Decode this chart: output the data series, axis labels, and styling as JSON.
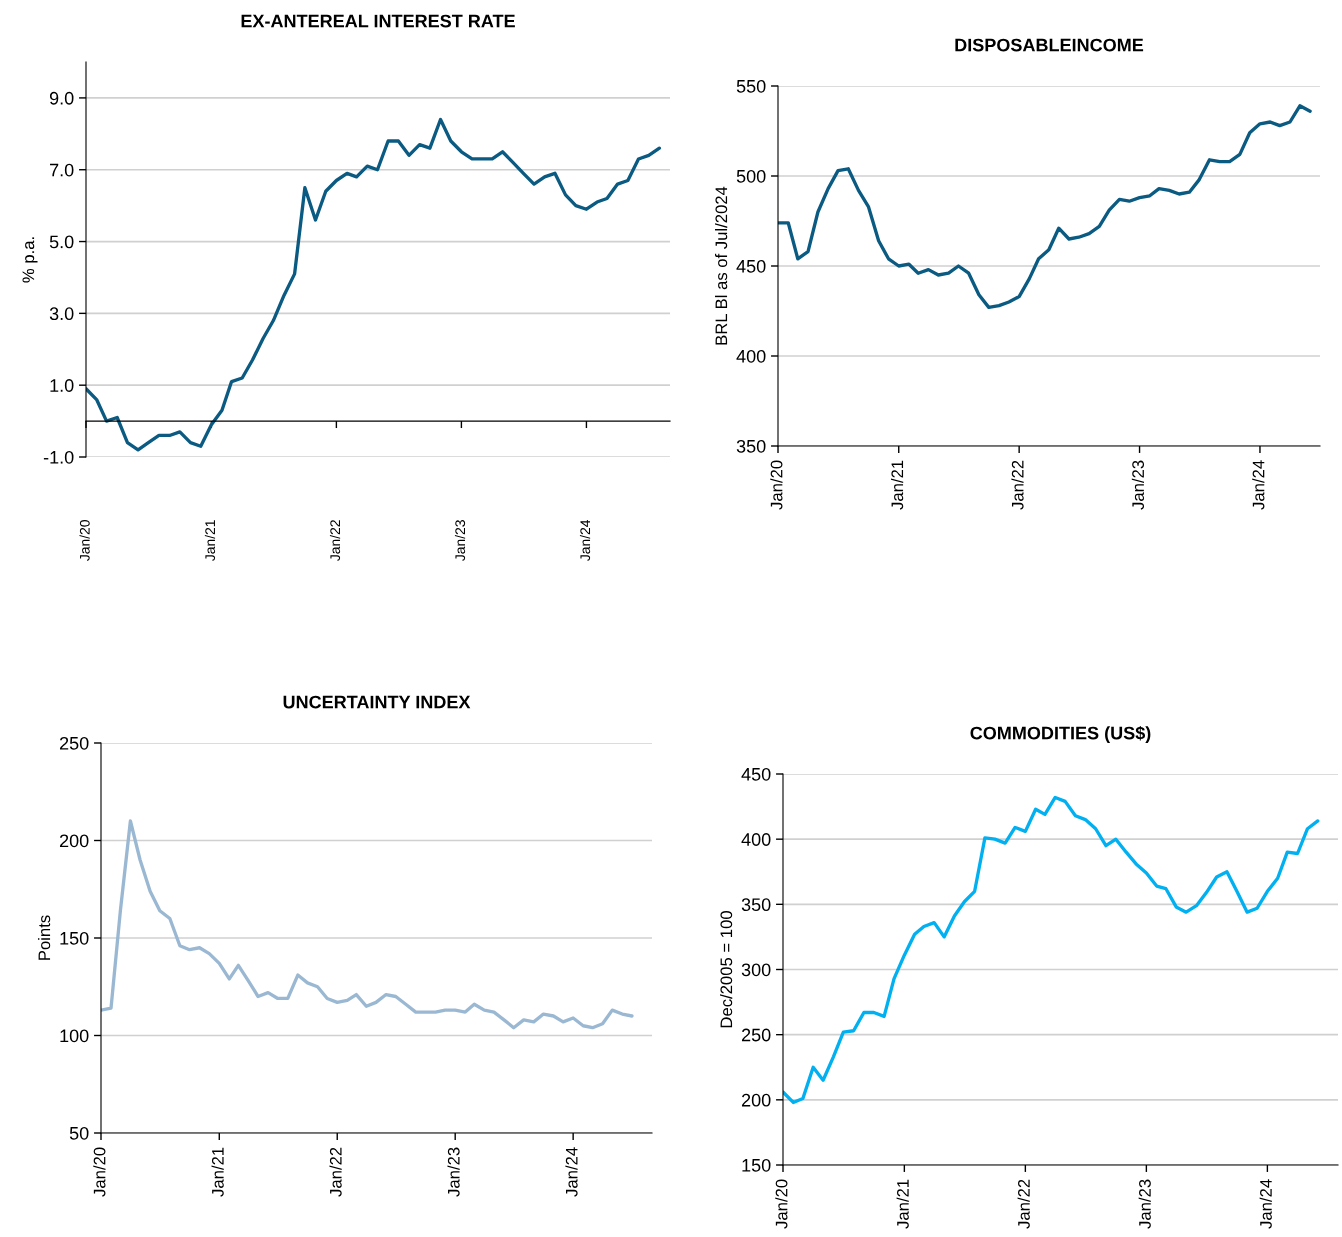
{
  "chart_data": [
    {
      "type": "line",
      "title": "EX-ANTEREAL INTEREST RATE",
      "ylabel": "% p.a.",
      "grid": "y",
      "line_style": "solid",
      "x": [
        "2020-01",
        "2020-02",
        "2020-03",
        "2020-04",
        "2020-05",
        "2020-06",
        "2020-07",
        "2020-08",
        "2020-09",
        "2020-10",
        "2020-11",
        "2020-12",
        "2021-01",
        "2021-02",
        "2021-03",
        "2021-04",
        "2021-05",
        "2021-06",
        "2021-07",
        "2021-08",
        "2021-09",
        "2021-10",
        "2021-11",
        "2021-12",
        "2022-01",
        "2022-02",
        "2022-03",
        "2022-04",
        "2022-05",
        "2022-06",
        "2022-07",
        "2022-08",
        "2022-09",
        "2022-10",
        "2022-11",
        "2022-12",
        "2023-01",
        "2023-02",
        "2023-03",
        "2023-04",
        "2023-05",
        "2023-06",
        "2023-07",
        "2023-08",
        "2023-09",
        "2023-10",
        "2023-11",
        "2023-12",
        "2024-01",
        "2024-02",
        "2024-03",
        "2024-04",
        "2024-05",
        "2024-06",
        "2024-07",
        "2024-08"
      ],
      "series": [
        {
          "color": "#0a5a82",
          "values": [
            0.9,
            0.6,
            0.0,
            0.1,
            -0.6,
            -0.8,
            -0.6,
            -0.4,
            -0.4,
            -0.3,
            -0.6,
            -0.7,
            -0.1,
            0.3,
            1.1,
            1.2,
            1.7,
            2.3,
            2.8,
            3.5,
            4.1,
            6.5,
            5.6,
            6.4,
            6.7,
            6.9,
            6.8,
            7.1,
            7.0,
            7.8,
            7.8,
            7.4,
            7.7,
            7.6,
            8.4,
            7.8,
            7.5,
            7.3,
            7.3,
            7.3,
            7.5,
            7.2,
            6.9,
            6.6,
            6.8,
            6.9,
            6.3,
            6.0,
            5.9,
            6.1,
            6.2,
            6.6,
            6.7,
            7.3,
            7.4,
            7.6
          ]
        }
      ],
      "xlim": [
        "2020-01",
        "2024-09"
      ],
      "ylim": [
        -1,
        10
      ],
      "xticks": [
        {
          "value": "2020-01",
          "label": "Jan/20"
        },
        {
          "value": "2021-01",
          "label": "Jan/21"
        },
        {
          "value": "2022-01",
          "label": "Jan/22"
        },
        {
          "value": "2023-01",
          "label": "Jan/23"
        },
        {
          "value": "2024-01",
          "label": "Jan/24"
        }
      ],
      "yticks": [
        {
          "value": -1,
          "label": "-1.0"
        },
        {
          "value": 1,
          "label": "1.0"
        },
        {
          "value": 3,
          "label": "3.0"
        },
        {
          "value": 5,
          "label": "5.0"
        },
        {
          "value": 7,
          "label": "7.0"
        },
        {
          "value": 9,
          "label": "9.0"
        }
      ]
    },
    {
      "type": "line",
      "title": "DISPOSABLEINCOME",
      "ylabel": "BRL Bl as of Jul/2024",
      "grid": "y",
      "line_style": "solid",
      "x": [
        "2020-01",
        "2020-02",
        "2020-03",
        "2020-04",
        "2020-05",
        "2020-06",
        "2020-07",
        "2020-08",
        "2020-09",
        "2020-10",
        "2020-11",
        "2020-12",
        "2021-01",
        "2021-02",
        "2021-03",
        "2021-04",
        "2021-05",
        "2021-06",
        "2021-07",
        "2021-08",
        "2021-09",
        "2021-10",
        "2021-11",
        "2021-12",
        "2022-01",
        "2022-02",
        "2022-03",
        "2022-04",
        "2022-05",
        "2022-06",
        "2022-07",
        "2022-08",
        "2022-09",
        "2022-10",
        "2022-11",
        "2022-12",
        "2023-01",
        "2023-02",
        "2023-03",
        "2023-04",
        "2023-05",
        "2023-06",
        "2023-07",
        "2023-08",
        "2023-09",
        "2023-10",
        "2023-11",
        "2023-12",
        "2024-01",
        "2024-02",
        "2024-03",
        "2024-04",
        "2024-05",
        "2024-06"
      ],
      "series": [
        {
          "color": "#0a5a82",
          "values": [
            474,
            474,
            454,
            458,
            480,
            493,
            503,
            504,
            492,
            483,
            464,
            454,
            450,
            451,
            446,
            448,
            445,
            446,
            450,
            446,
            434,
            427,
            428,
            430,
            433,
            443,
            454,
            459,
            471,
            465,
            466,
            468,
            472,
            481,
            487,
            486,
            488,
            489,
            493,
            492,
            490,
            491,
            498,
            509,
            508,
            508,
            512,
            524,
            529,
            530,
            528,
            530,
            539,
            536
          ]
        }
      ],
      "xlim": [
        "2020-01",
        "2024-07"
      ],
      "ylim": [
        350,
        550
      ],
      "xticks": [
        {
          "value": "2020-01",
          "label": "Jan/20"
        },
        {
          "value": "2021-01",
          "label": "Jan/21"
        },
        {
          "value": "2022-01",
          "label": "Jan/22"
        },
        {
          "value": "2023-01",
          "label": "Jan/23"
        },
        {
          "value": "2024-01",
          "label": "Jan/24"
        }
      ],
      "yticks": [
        350,
        400,
        450,
        500,
        550
      ]
    },
    {
      "type": "line",
      "title": "UNCERTAINTY INDEX",
      "ylabel": "Points",
      "grid": "y",
      "line_style": "solid",
      "x": [
        "2020-01",
        "2020-02",
        "2020-03",
        "2020-04",
        "2020-05",
        "2020-06",
        "2020-07",
        "2020-08",
        "2020-09",
        "2020-10",
        "2020-11",
        "2020-12",
        "2021-01",
        "2021-02",
        "2021-03",
        "2021-04",
        "2021-05",
        "2021-06",
        "2021-07",
        "2021-08",
        "2021-09",
        "2021-10",
        "2021-11",
        "2021-12",
        "2022-01",
        "2022-02",
        "2022-03",
        "2022-04",
        "2022-05",
        "2022-06",
        "2022-07",
        "2022-08",
        "2022-09",
        "2022-10",
        "2022-11",
        "2022-12",
        "2023-01",
        "2023-02",
        "2023-03",
        "2023-04",
        "2023-05",
        "2023-06",
        "2023-07",
        "2023-08",
        "2023-09",
        "2023-10",
        "2023-11",
        "2023-12",
        "2024-01",
        "2024-02",
        "2024-03",
        "2024-04",
        "2024-05",
        "2024-06",
        "2024-07"
      ],
      "series": [
        {
          "color": "#9bb8d3",
          "values": [
            113,
            114,
            164,
            210,
            190,
            174,
            164,
            160,
            146,
            144,
            145,
            142,
            137,
            129,
            136,
            128,
            120,
            122,
            119,
            119,
            131,
            127,
            125,
            119,
            117,
            118,
            121,
            115,
            117,
            121,
            120,
            116,
            112,
            112,
            112,
            113,
            113,
            112,
            116,
            113,
            112,
            108,
            104,
            108,
            107,
            111,
            110,
            107,
            109,
            105,
            104,
            106,
            113,
            111,
            110
          ]
        }
      ],
      "xlim": [
        "2020-01",
        "2024-09"
      ],
      "ylim": [
        50,
        250
      ],
      "xticks": [
        {
          "value": "2020-01",
          "label": "Jan/20"
        },
        {
          "value": "2021-01",
          "label": "Jan/21"
        },
        {
          "value": "2022-01",
          "label": "Jan/22"
        },
        {
          "value": "2023-01",
          "label": "Jan/23"
        },
        {
          "value": "2024-01",
          "label": "Jan/24"
        }
      ],
      "yticks": [
        50,
        100,
        150,
        200,
        250
      ]
    },
    {
      "type": "line",
      "title": "COMMODITIES (US$)",
      "ylabel": "Dec/2005 = 100",
      "grid": "y",
      "line_style": "solid",
      "x": [
        "2020-01",
        "2020-02",
        "2020-03",
        "2020-04",
        "2020-05",
        "2020-06",
        "2020-07",
        "2020-08",
        "2020-09",
        "2020-10",
        "2020-11",
        "2020-12",
        "2021-01",
        "2021-02",
        "2021-03",
        "2021-04",
        "2021-05",
        "2021-06",
        "2021-07",
        "2021-08",
        "2021-09",
        "2021-10",
        "2021-11",
        "2021-12",
        "2022-01",
        "2022-02",
        "2022-03",
        "2022-04",
        "2022-05",
        "2022-06",
        "2022-07",
        "2022-08",
        "2022-09",
        "2022-10",
        "2022-11",
        "2022-12",
        "2023-01",
        "2023-02",
        "2023-03",
        "2023-04",
        "2023-05",
        "2023-06",
        "2023-07",
        "2023-08",
        "2023-09",
        "2023-10",
        "2023-11",
        "2023-12",
        "2024-01",
        "2024-02",
        "2024-03",
        "2024-04",
        "2024-05",
        "2024-06"
      ],
      "series": [
        {
          "color": "#00b0f0",
          "values": [
            206,
            198,
            201,
            225,
            215,
            233,
            252,
            253,
            267,
            267,
            264,
            293,
            311,
            327,
            333,
            336,
            325,
            341,
            352,
            360,
            401,
            400,
            397,
            409,
            406,
            423,
            419,
            432,
            429,
            418,
            415,
            408,
            395,
            400,
            390,
            381,
            374,
            364,
            362,
            348,
            344,
            349,
            359,
            371,
            375,
            360,
            344,
            347,
            360,
            370,
            390,
            389,
            408,
            414
          ]
        }
      ],
      "xlim": [
        "2020-01",
        "2024-08"
      ],
      "ylim": [
        150,
        450
      ],
      "xticks": [
        {
          "value": "2020-01",
          "label": "Jan/20"
        },
        {
          "value": "2021-01",
          "label": "Jan/21"
        },
        {
          "value": "2022-01",
          "label": "Jan/22"
        },
        {
          "value": "2023-01",
          "label": "Jan/23"
        },
        {
          "value": "2024-01",
          "label": "Jan/24"
        }
      ],
      "yticks": [
        150,
        200,
        250,
        300,
        350,
        400,
        450
      ]
    }
  ]
}
